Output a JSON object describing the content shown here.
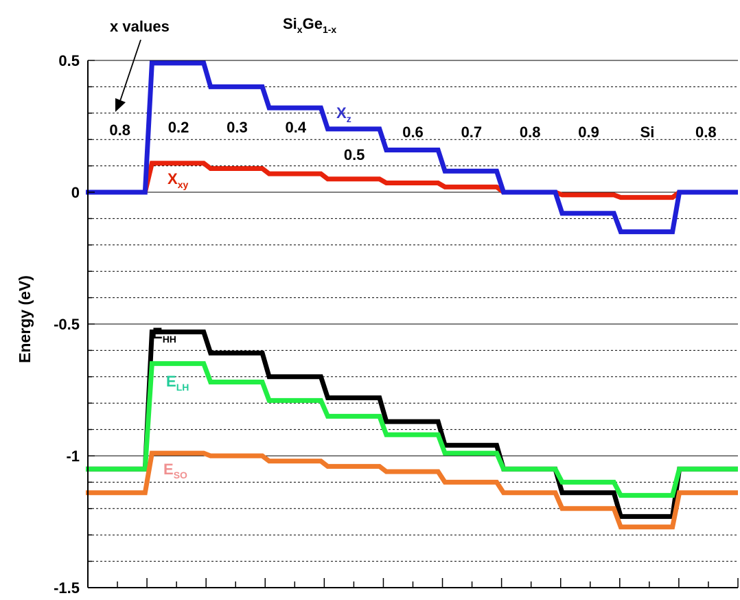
{
  "chart_data": {
    "type": "line",
    "title": "SixGe1-x",
    "title_parts": {
      "base1": "Si",
      "sub1": "x",
      "base2": "Ge",
      "sub2": "1-x"
    },
    "xlabel": "",
    "ylabel": "Energy (eV)",
    "ylim": [
      -1.5,
      0.5
    ],
    "y_ticks": [
      0.5,
      0,
      -0.5,
      -1,
      -1.5
    ],
    "y_tick_labels": [
      "0.5",
      "0",
      "-0.5",
      "-1",
      "-1.5"
    ],
    "grid": {
      "major_solid": true,
      "minor_dotted": true
    },
    "x_segments": 11,
    "region_labels": [
      {
        "segment": 0,
        "text": "0.8"
      },
      {
        "segment": 1,
        "text": "0.2"
      },
      {
        "segment": 2,
        "text": "0.3"
      },
      {
        "segment": 3,
        "text": "0.4"
      },
      {
        "segment": 4,
        "text": "0.5"
      },
      {
        "segment": 5,
        "text": "0.6"
      },
      {
        "segment": 6,
        "text": "0.7"
      },
      {
        "segment": 7,
        "text": "0.8"
      },
      {
        "segment": 8,
        "text": "0.9"
      },
      {
        "segment": 9,
        "text": "Si"
      },
      {
        "segment": 10,
        "text": "0.8"
      }
    ],
    "annotation": {
      "text": "x values",
      "arrow": true
    },
    "series": [
      {
        "name": "Xz",
        "label_base": "X",
        "label_sub": "z",
        "color": "#1f1fd6",
        "label_color": "#3333cc",
        "values": [
          0,
          0.49,
          0.4,
          0.32,
          0.24,
          0.16,
          0.08,
          0,
          -0.08,
          -0.15,
          0
        ]
      },
      {
        "name": "Xxy",
        "label_base": "X",
        "label_sub": "xy",
        "color": "#e8230c",
        "label_color": "#dd2200",
        "values": [
          0,
          0.11,
          0.09,
          0.07,
          0.05,
          0.035,
          0.02,
          0,
          -0.01,
          -0.02,
          0
        ]
      },
      {
        "name": "EHH",
        "label_base": "E",
        "label_sub": "HH",
        "color": "#000000",
        "label_color": "#000000",
        "values": [
          -1.05,
          -0.53,
          -0.61,
          -0.7,
          -0.78,
          -0.87,
          -0.96,
          -1.05,
          -1.14,
          -1.23,
          -1.05
        ]
      },
      {
        "name": "ELH",
        "label_base": "E",
        "label_sub": "LH",
        "color": "#22ee44",
        "label_color": "#22cc99",
        "values": [
          -1.05,
          -0.65,
          -0.72,
          -0.79,
          -0.85,
          -0.92,
          -0.99,
          -1.05,
          -1.1,
          -1.15,
          -1.05
        ]
      },
      {
        "name": "ESO",
        "label_base": "E",
        "label_sub": "SO",
        "color": "#f07a2a",
        "label_color": "#f09090",
        "values": [
          -1.14,
          -0.99,
          -1.0,
          -1.02,
          -1.04,
          -1.06,
          -1.1,
          -1.14,
          -1.2,
          -1.27,
          -1.14
        ]
      }
    ]
  }
}
